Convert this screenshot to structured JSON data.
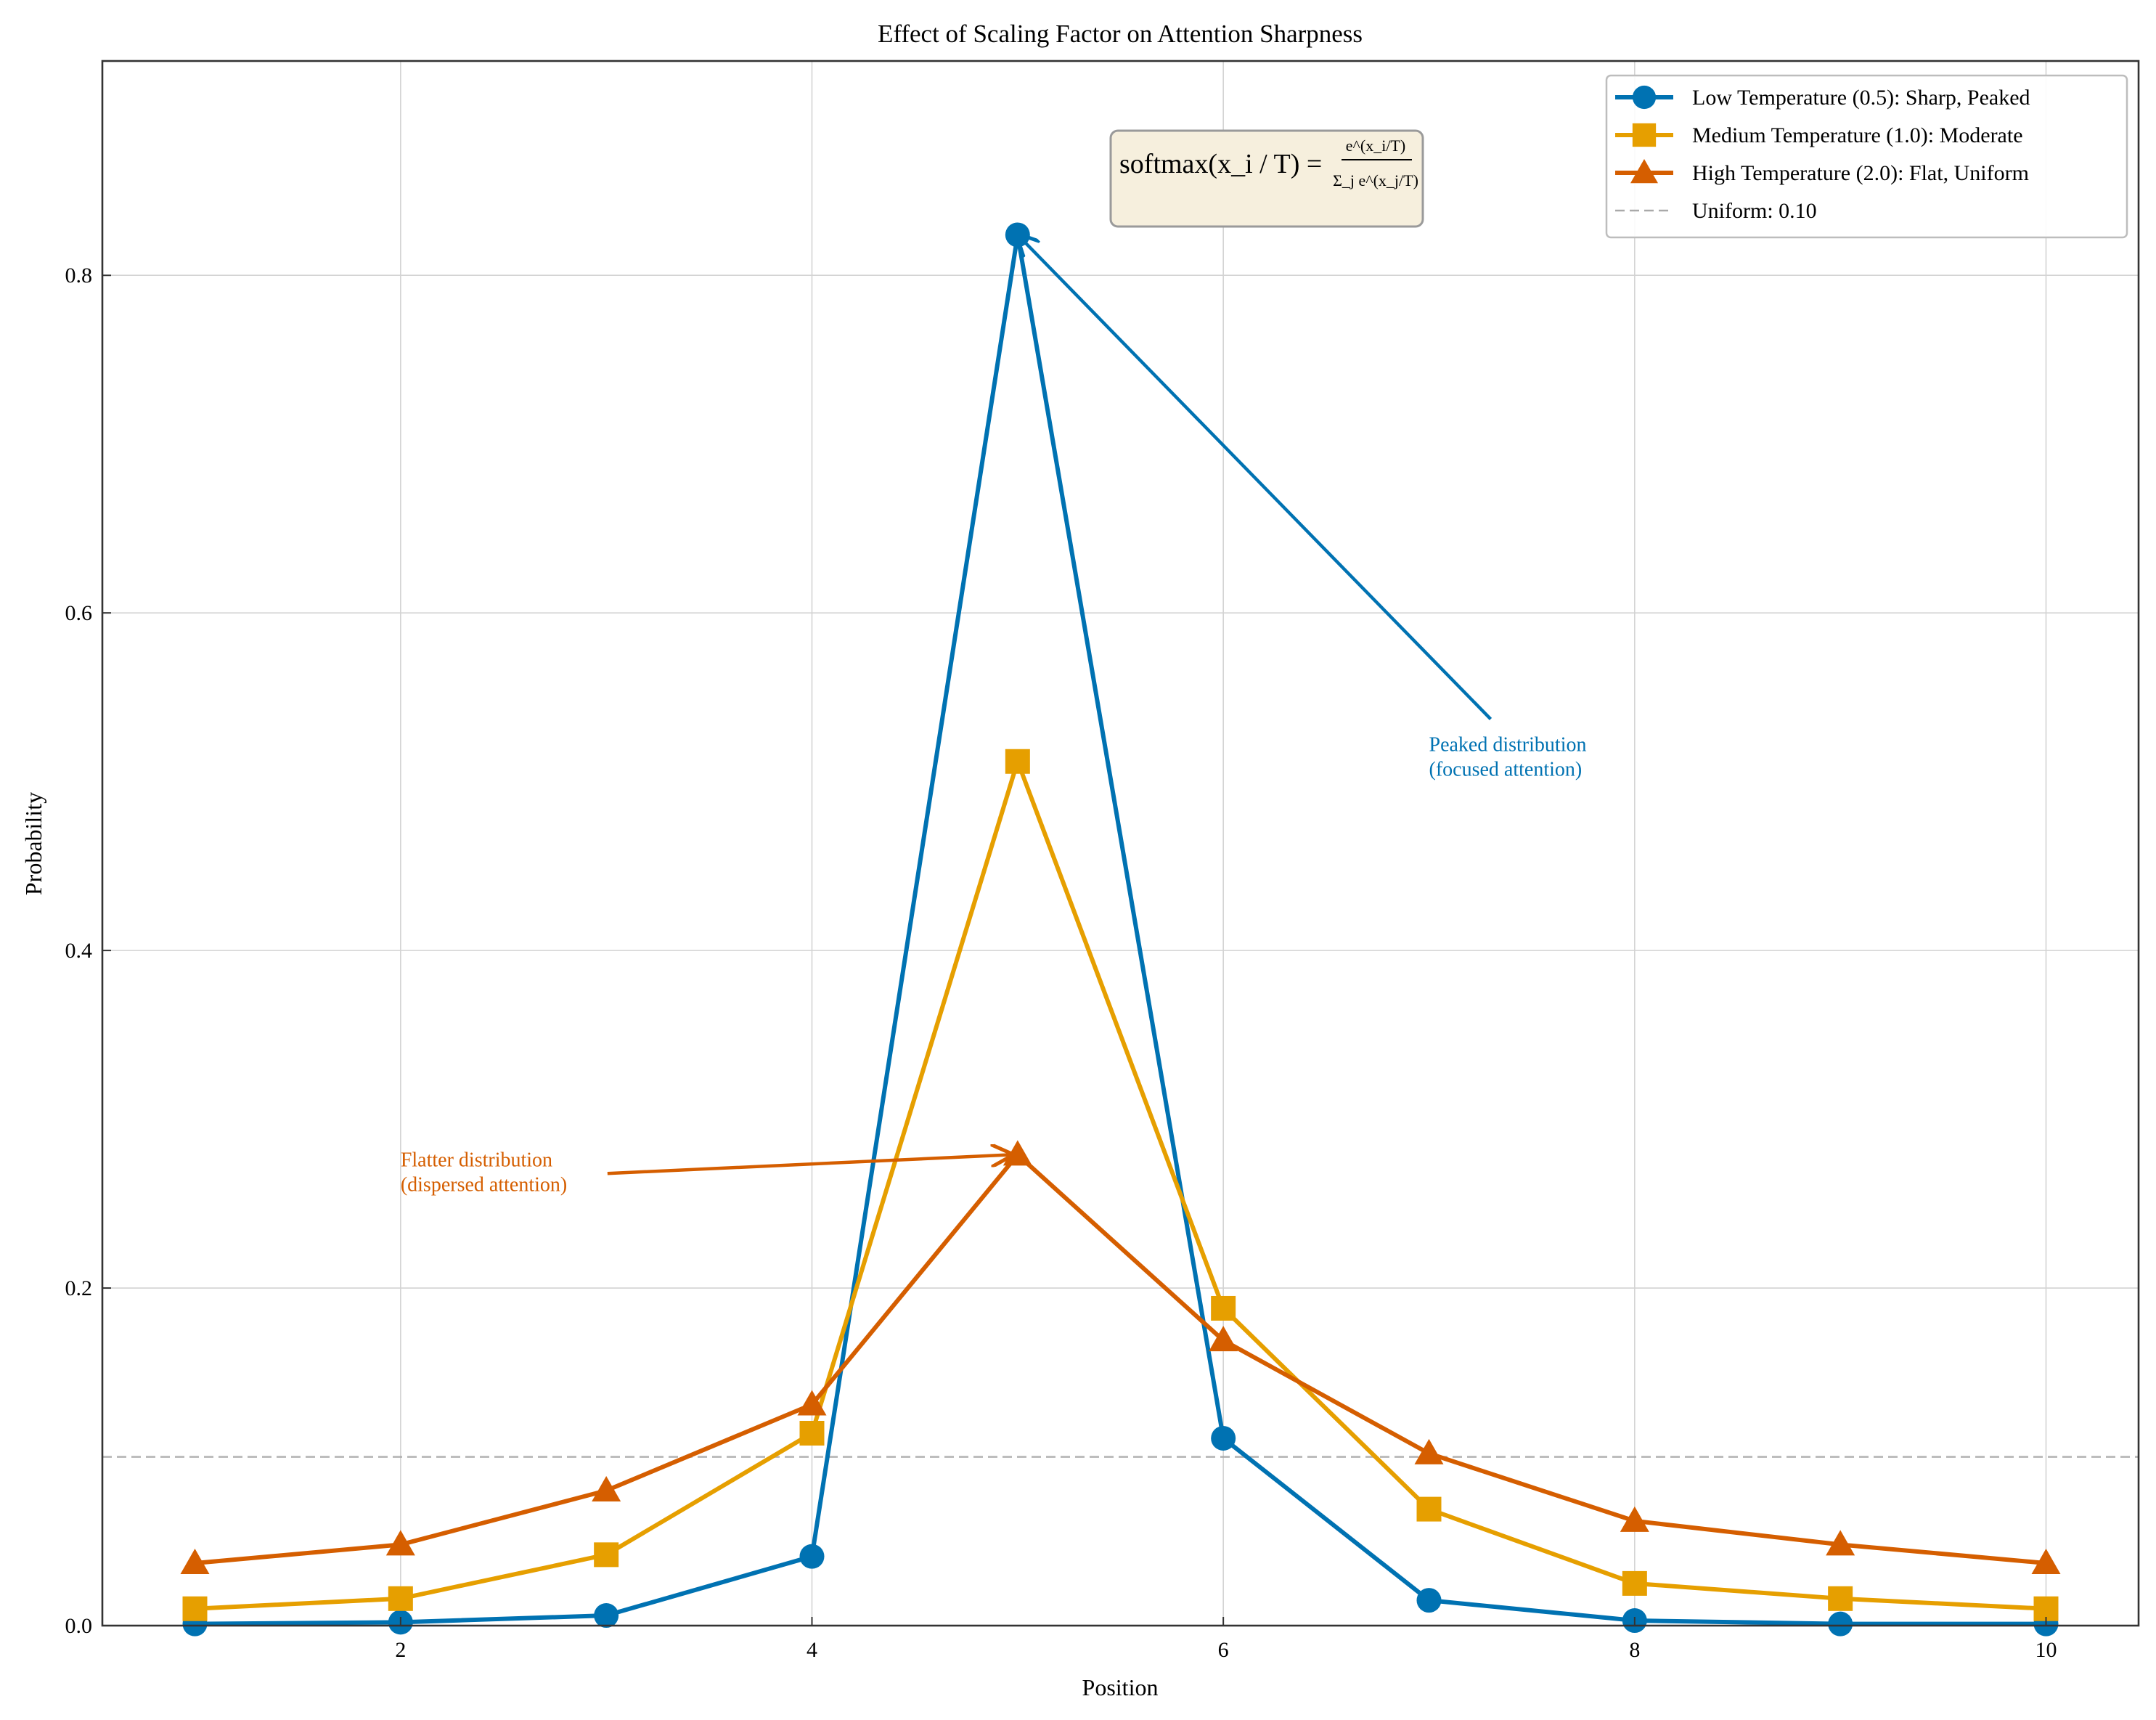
{
  "chart_data": {
    "type": "line",
    "title": "Effect of Scaling Factor on Attention Sharpness",
    "xlabel": "Position",
    "ylabel": "Probability",
    "xlim": [
      0.55,
      10.45
    ],
    "ylim": [
      0,
      0.927
    ],
    "xticks": [
      2,
      4,
      6,
      8,
      10
    ],
    "yticks": [
      0.0,
      0.2,
      0.4,
      0.6,
      0.8
    ],
    "xtick_labels": [
      "2",
      "4",
      "6",
      "8",
      "10"
    ],
    "ytick_labels": [
      "0.0",
      "0.2",
      "0.4",
      "0.6",
      "0.8"
    ],
    "grid": true,
    "legend_position": "top-right",
    "x": [
      1,
      2,
      3,
      4,
      5,
      6,
      7,
      8,
      9,
      10
    ],
    "series": [
      {
        "name": "Low Temperature (0.5): Sharp, Peaked",
        "marker": "circle",
        "color": "#0072B2",
        "values": [
          0.001,
          0.002,
          0.006,
          0.041,
          0.824,
          0.111,
          0.015,
          0.003,
          0.001,
          0.001
        ]
      },
      {
        "name": "Medium Temperature (1.0): Moderate",
        "marker": "square",
        "color": "#E69F00",
        "values": [
          0.01,
          0.016,
          0.042,
          0.114,
          0.512,
          0.188,
          0.069,
          0.025,
          0.016,
          0.01
        ]
      },
      {
        "name": "High Temperature (2.0): Flat, Uniform",
        "marker": "triangle",
        "color": "#D55E00",
        "values": [
          0.037,
          0.048,
          0.08,
          0.131,
          0.279,
          0.169,
          0.102,
          0.062,
          0.048,
          0.037
        ]
      }
    ],
    "reference_line": {
      "label": "Uniform: 0.10",
      "value": 0.1,
      "color": "#A9A9A9"
    },
    "annotations": [
      {
        "lines": [
          "Peaked distribution",
          "(focused attention)"
        ],
        "text_x": 7.0,
        "text_y": 0.51,
        "arrow_target_x": 5.0,
        "arrow_target_y": 0.824,
        "color": "#0072B2"
      },
      {
        "lines": [
          "Flatter distribution",
          "(dispersed attention)"
        ],
        "text_x": 2.0,
        "text_y": 0.264,
        "arrow_target_x": 4.97,
        "arrow_target_y": 0.279,
        "color": "#D55E00"
      }
    ],
    "formula": {
      "lhs": "softmax(x_i / T) =",
      "numerator": "e^(x_i/T)",
      "denominator": "Σ_j e^(x_j/T)",
      "box_color": "#F6EFDD"
    }
  }
}
